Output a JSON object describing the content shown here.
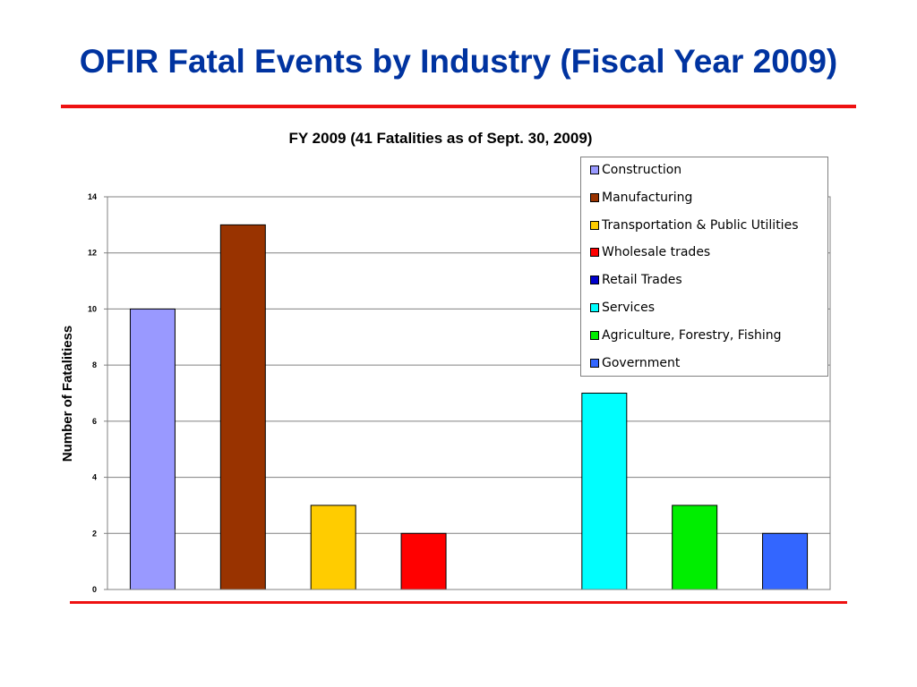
{
  "slide": {
    "title": "OFIR Fatal Events by Industry (Fiscal Year 2009)"
  },
  "chart_data": {
    "type": "bar",
    "title": "FY 2009 (41 Fatalities as of Sept. 30, 2009)",
    "xlabel": "",
    "ylabel": "Number of Fatalitiess",
    "ylim": [
      0,
      14
    ],
    "yticks": [
      "0",
      "2",
      "4",
      "6",
      "8",
      "10",
      "12",
      "14"
    ],
    "grid": true,
    "legend_position": "top-right",
    "categories": [
      "Construction",
      "Manufacturing",
      "Transportation & Public Utilities",
      "Wholesale trades",
      "Retail Trades",
      "Services",
      "Agriculture, Forestry, Fishing",
      "Government"
    ],
    "values": [
      10,
      13,
      3,
      2,
      0,
      7,
      3,
      2
    ],
    "colors": [
      "#9999ff",
      "#993300",
      "#ffcc00",
      "#ff0000",
      "#0000cc",
      "#00ffff",
      "#00ee00",
      "#3366ff"
    ]
  }
}
